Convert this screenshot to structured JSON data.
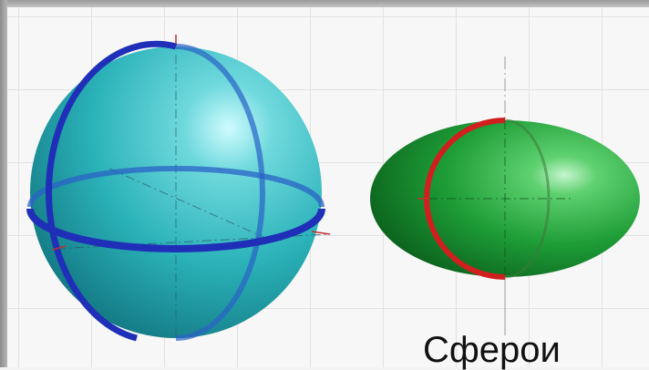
{
  "figure": {
    "caption": "Сферои",
    "colors": {
      "sphere_fill": "#33b8bf",
      "sphere_rings": "#1f2fb8",
      "spheroid_fill": "#1fa038",
      "spheroid_ring": "#d11f1f",
      "axes": "#c2302a",
      "grid": "#e2e2e2",
      "frame": "#bdbdbd"
    },
    "shapes": [
      {
        "name": "sphere",
        "fill_color": "sphere_fill",
        "ring_color": "sphere_rings"
      },
      {
        "name": "spheroid",
        "fill_color": "spheroid_fill",
        "ring_color": "spheroid_ring"
      }
    ]
  }
}
